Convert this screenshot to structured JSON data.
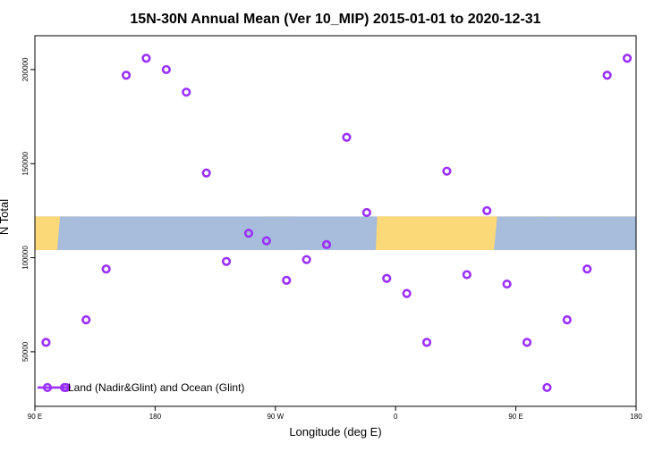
{
  "chart_data": {
    "type": "scatter",
    "title": "15N-30N Annual Mean (Ver 10_MIP)   2015-01-01 to 2020-12-31",
    "xlabel": "Longitude (deg E)",
    "ylabel": "N Total",
    "xlim": [
      -85,
      180
    ],
    "ylim": [
      21000,
      218000
    ],
    "x_ticks": [
      {
        "value": -90,
        "label": "90 E"
      },
      {
        "value": -36,
        "label": "180"
      },
      {
        "value": 18,
        "label": "90 W"
      },
      {
        "value": 72,
        "label": "0"
      },
      {
        "value": 126,
        "label": "90 E"
      },
      {
        "value": 180,
        "label": "180"
      }
    ],
    "y_ticks": [
      {
        "value": 50000,
        "label": "50000"
      },
      {
        "value": 100000,
        "label": "100000"
      },
      {
        "value": 150000,
        "label": "150000"
      },
      {
        "value": 200000,
        "label": "200000"
      }
    ],
    "map_band": {
      "ymin": 104000,
      "ymax": 122000,
      "ocean_color": "#a7bddb",
      "land_color": "#fcd978"
    },
    "series": [
      {
        "name": "Land (Nadir&Glint) and Ocean (Glint)",
        "color": "#9b30ff",
        "marker": "open-circle",
        "points": [
          {
            "x": -85,
            "y": 55000
          },
          {
            "x": -76,
            "y": 31000
          },
          {
            "x": -67,
            "y": 67000
          },
          {
            "x": -58,
            "y": 94000
          },
          {
            "x": -49,
            "y": 197000
          },
          {
            "x": -40,
            "y": 206000
          },
          {
            "x": -31,
            "y": 200000
          },
          {
            "x": -22,
            "y": 188000
          },
          {
            "x": -13,
            "y": 145000
          },
          {
            "x": -4,
            "y": 98000
          },
          {
            "x": 6,
            "y": 113000
          },
          {
            "x": 14,
            "y": 109000
          },
          {
            "x": 23,
            "y": 88000
          },
          {
            "x": 32,
            "y": 99000
          },
          {
            "x": 41,
            "y": 107000
          },
          {
            "x": 50,
            "y": 164000
          },
          {
            "x": 59,
            "y": 124000
          },
          {
            "x": 68,
            "y": 89000
          },
          {
            "x": 77,
            "y": 81000
          },
          {
            "x": 86,
            "y": 55000
          },
          {
            "x": 95,
            "y": 146000
          },
          {
            "x": 104,
            "y": 91000
          },
          {
            "x": 113,
            "y": 125000
          },
          {
            "x": 122,
            "y": 86000
          },
          {
            "x": 131,
            "y": 55000
          },
          {
            "x": 140,
            "y": 31000
          },
          {
            "x": 149,
            "y": 67000
          },
          {
            "x": 158,
            "y": 94000
          },
          {
            "x": 167,
            "y": 197000
          },
          {
            "x": 176,
            "y": 206000
          }
        ]
      }
    ],
    "legend": {
      "position": "bottom-left",
      "label": "Land (Nadir&Glint) and Ocean (Glint)"
    },
    "grid": false
  }
}
